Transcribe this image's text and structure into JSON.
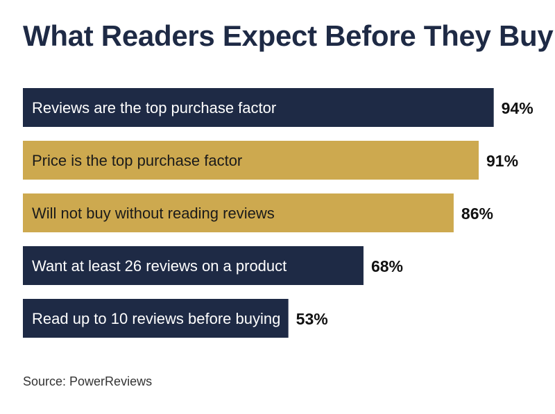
{
  "title": "What Readers Expect Before They Buy",
  "source": "Source: PowerReviews",
  "colors": {
    "title": "#1e2a45",
    "navy": "#1e2a45",
    "gold": "#cda94f",
    "bar_text": "#ffffff",
    "value_text": "#111111"
  },
  "chart_data": {
    "type": "bar",
    "orientation": "horizontal",
    "categories": [
      "Reviews are the top purchase factor",
      "Price is the top purchase factor",
      "Will not buy without reading reviews",
      "Want at least 26 reviews on a product",
      "Read up to 10 reviews before buying"
    ],
    "values": [
      94,
      91,
      86,
      68,
      53
    ],
    "value_labels": [
      "94%",
      "91%",
      "86%",
      "68%",
      "53%"
    ],
    "bar_colors": [
      "navy",
      "gold",
      "gold",
      "navy",
      "navy"
    ],
    "unit": "%",
    "xlim": [
      0,
      100
    ],
    "grid": false,
    "legend": "none"
  }
}
